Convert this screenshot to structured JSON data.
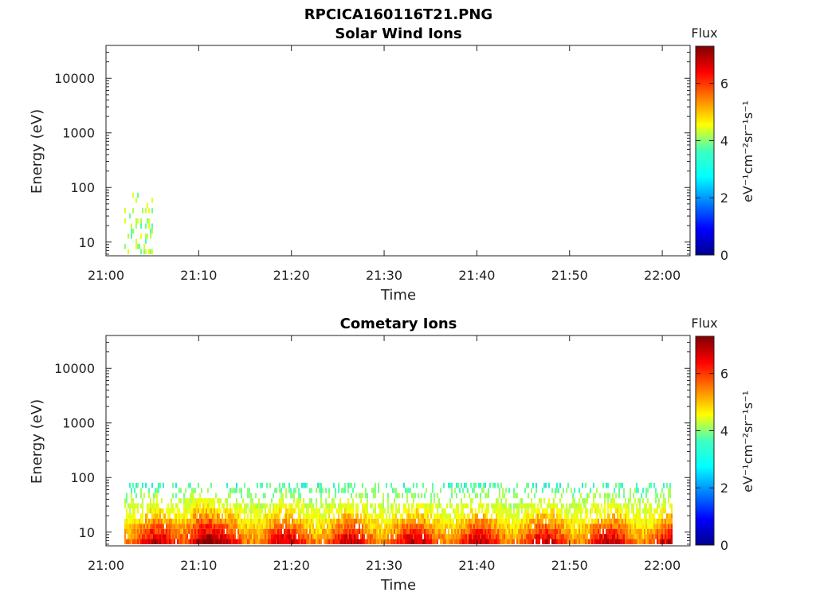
{
  "figure_title": "RPCICA160116T21.PNG",
  "chart_data": [
    {
      "type": "heatmap",
      "title": "Solar Wind Ions",
      "xlabel": "Time",
      "ylabel": "Energy (eV)",
      "y_scale": "log",
      "xlim": [
        "21:00",
        "22:03"
      ],
      "ylim": [
        5.6,
        40000
      ],
      "x_ticks": [
        "21:00",
        "21:10",
        "21:20",
        "21:30",
        "21:40",
        "21:50",
        "22:00"
      ],
      "y_ticks": [
        "10",
        "100",
        "1000",
        "10000"
      ],
      "colorbar": {
        "title": "Flux",
        "label": "eV⁻¹cm⁻²sr⁻¹s⁻¹",
        "range": [
          0,
          7.3
        ],
        "ticks": [
          "0",
          "2",
          "4",
          "6"
        ]
      },
      "approx_data": {
        "description": "sparse low flux near 21:02-21:05 at 6-80 eV",
        "time_range": [
          "21:02",
          "21:05"
        ],
        "energy_range_eV": [
          6,
          80
        ],
        "flux_range": [
          2.5,
          4.5
        ]
      }
    },
    {
      "type": "heatmap",
      "title": "Cometary Ions",
      "xlabel": "Time",
      "ylabel": "Energy (eV)",
      "y_scale": "log",
      "xlim": [
        "21:00",
        "22:03"
      ],
      "ylim": [
        5.6,
        40000
      ],
      "x_ticks": [
        "21:00",
        "21:10",
        "21:20",
        "21:30",
        "21:40",
        "21:50",
        "22:00"
      ],
      "y_ticks": [
        "10",
        "100",
        "1000",
        "10000"
      ],
      "colorbar": {
        "title": "Flux",
        "label": "eV⁻¹cm⁻²sr⁻¹s⁻¹",
        "range": [
          0,
          7.3
        ],
        "ticks": [
          "0",
          "2",
          "4",
          "6"
        ]
      },
      "approx_data": {
        "description": "continuous ion flux 21:02-22:01 below ~80 eV, peak ~6.5-7 near 21:09-21:11 at 10-40 eV",
        "time_range": [
          "21:02",
          "22:01"
        ],
        "energy_range_eV": [
          6,
          80
        ],
        "flux_range": [
          2.5,
          7.0
        ]
      }
    }
  ],
  "colors": {
    "colormap": [
      "#00008f",
      "#0000ff",
      "#00bfff",
      "#40ffbf",
      "#bfff40",
      "#ffff00",
      "#ff8000",
      "#ff0000",
      "#800000"
    ]
  }
}
